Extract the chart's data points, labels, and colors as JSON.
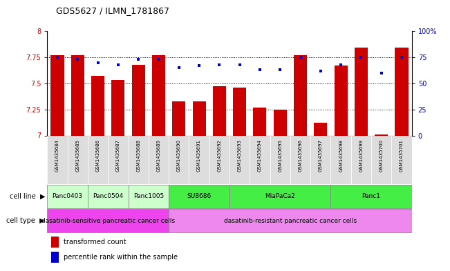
{
  "title": "GDS5627 / ILMN_1781867",
  "samples": [
    "GSM1435684",
    "GSM1435685",
    "GSM1435686",
    "GSM1435687",
    "GSM1435688",
    "GSM1435689",
    "GSM1435690",
    "GSM1435691",
    "GSM1435692",
    "GSM1435693",
    "GSM1435694",
    "GSM1435695",
    "GSM1435696",
    "GSM1435697",
    "GSM1435698",
    "GSM1435699",
    "GSM1435700",
    "GSM1435701"
  ],
  "transformed_count": [
    7.77,
    7.77,
    7.57,
    7.53,
    7.68,
    7.77,
    7.33,
    7.33,
    7.47,
    7.46,
    7.27,
    7.25,
    7.77,
    7.12,
    7.67,
    7.84,
    7.01,
    7.84
  ],
  "percentile_rank": [
    75,
    73,
    70,
    68,
    73,
    73,
    65,
    67,
    68,
    68,
    63,
    63,
    75,
    62,
    68,
    75,
    60,
    75
  ],
  "ylim_left": [
    7.0,
    8.0
  ],
  "ylim_right": [
    0,
    100
  ],
  "yticks_left": [
    7.0,
    7.25,
    7.5,
    7.75,
    8.0
  ],
  "yticks_right": [
    0,
    25,
    50,
    75,
    100
  ],
  "bar_color": "#cc0000",
  "dot_color": "#0000cc",
  "bar_width": 0.65,
  "cl_groups": [
    {
      "label": "Panc0403",
      "start": 0,
      "end": 1,
      "color": "#ccffcc"
    },
    {
      "label": "Panc0504",
      "start": 2,
      "end": 3,
      "color": "#ccffcc"
    },
    {
      "label": "Panc1005",
      "start": 4,
      "end": 5,
      "color": "#ccffcc"
    },
    {
      "label": "SU8686",
      "start": 6,
      "end": 8,
      "color": "#44ee44"
    },
    {
      "label": "MiaPaCa2",
      "start": 9,
      "end": 13,
      "color": "#44ee44"
    },
    {
      "label": "Panc1",
      "start": 14,
      "end": 17,
      "color": "#44ee44"
    }
  ],
  "ct_groups": [
    {
      "label": "dasatinib-sensitive pancreatic cancer cells",
      "start": 0,
      "end": 5,
      "color": "#ee44ee"
    },
    {
      "label": "dasatinib-resistant pancreatic cancer cells",
      "start": 6,
      "end": 17,
      "color": "#ee88ee"
    }
  ],
  "legend_bar_label": "transformed count",
  "legend_dot_label": "percentile rank within the sample",
  "cell_line_label": "cell line",
  "cell_type_label": "cell type",
  "tick_color_left": "#cc0000",
  "tick_color_right": "#0000cc",
  "bg_color": "#ffffff",
  "xtick_box_color": "#dddddd"
}
